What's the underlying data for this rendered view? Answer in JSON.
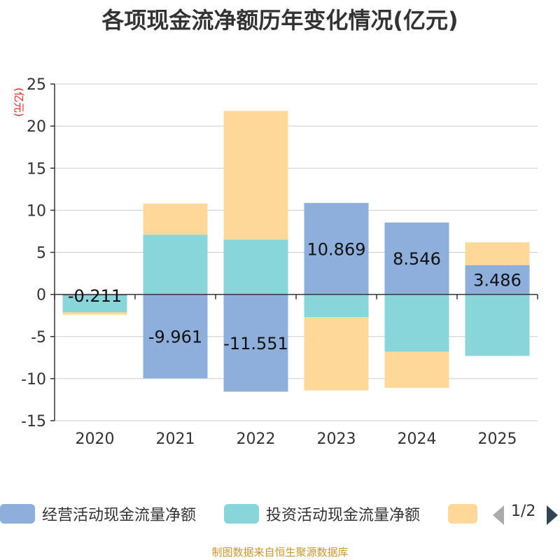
{
  "chart_data": {
    "type": "bar",
    "stacked": true,
    "title": "各项现金流净额历年变化情况(亿元)",
    "ylabel": "(亿元)",
    "xlabel": "",
    "categories": [
      "2020",
      "2021",
      "2022",
      "2023",
      "2024",
      "2025"
    ],
    "ylim": [
      -15,
      25
    ],
    "yticks": [
      25,
      20,
      15,
      10,
      5,
      0,
      -5,
      -10,
      -15
    ],
    "series": [
      {
        "name": "经营活动现金流量净额",
        "color": "#8eaedb",
        "values": [
          -0.211,
          -9.961,
          -11.551,
          10.869,
          8.546,
          3.486
        ],
        "show_labels": true
      },
      {
        "name": "投资活动现金流量净额",
        "color": "#88d6d9",
        "values": [
          -1.9,
          7.1,
          6.5,
          -2.7,
          -6.8,
          -7.3
        ],
        "show_labels": false
      },
      {
        "name": "",
        "color": "#fdd898",
        "values": [
          -0.3,
          3.7,
          15.3,
          -8.7,
          -4.3,
          2.7
        ],
        "show_labels": false
      }
    ],
    "data_labels": [
      "-0.211",
      "-9.961",
      "-11.551",
      "10.869",
      "8.546",
      "3.486"
    ],
    "legend_position": "bottom"
  },
  "legend": {
    "items": [
      "经营活动现金流量净额",
      "投资活动现金流量净额",
      ""
    ],
    "pager": "1/2"
  },
  "footer": "制图数据来自恒生聚源数据库"
}
